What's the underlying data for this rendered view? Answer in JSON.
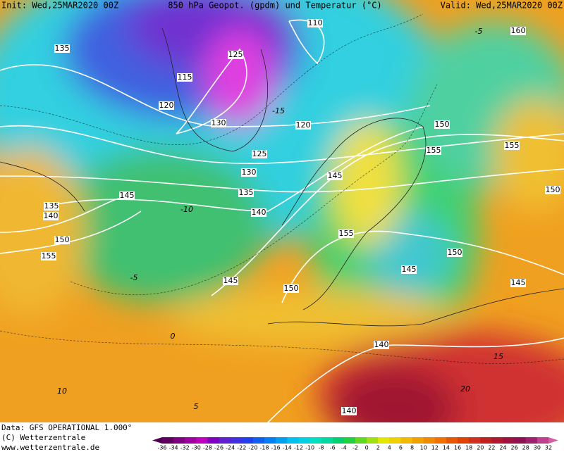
{
  "header": {
    "init": "Init: Wed,25MAR2020 00Z",
    "title": "850 hPa Geopot. (gpdm) und Temperatur (°C)",
    "valid": "Valid: Wed,25MAR2020 00Z"
  },
  "footer": {
    "data_source": "Data: GFS OPERATIONAL 1.000°",
    "copyright": "(C) Wetterzentrale",
    "website": "www.wetterzentrale.de"
  },
  "colorbar": {
    "ticks": [
      -36,
      -34,
      -32,
      -30,
      -28,
      -26,
      -24,
      -22,
      -20,
      -18,
      -16,
      -14,
      -12,
      -10,
      -8,
      -6,
      -4,
      -2,
      0,
      2,
      4,
      6,
      8,
      10,
      12,
      14,
      16,
      18,
      20,
      22,
      24,
      26,
      28,
      30,
      32
    ]
  },
  "geopotential_labels": [
    "110",
    "160",
    "135",
    "125",
    "115",
    "120",
    "130",
    "120",
    "150",
    "155",
    "125",
    "155",
    "130",
    "145",
    "135",
    "145",
    "150",
    "135",
    "140",
    "140",
    "155",
    "150",
    "150",
    "155",
    "145",
    "145",
    "150",
    "145",
    "140",
    "140"
  ],
  "temperature_labels": [
    "-15",
    "-10",
    "-5",
    "0",
    "5",
    "10",
    "15",
    "20",
    "-5"
  ]
}
